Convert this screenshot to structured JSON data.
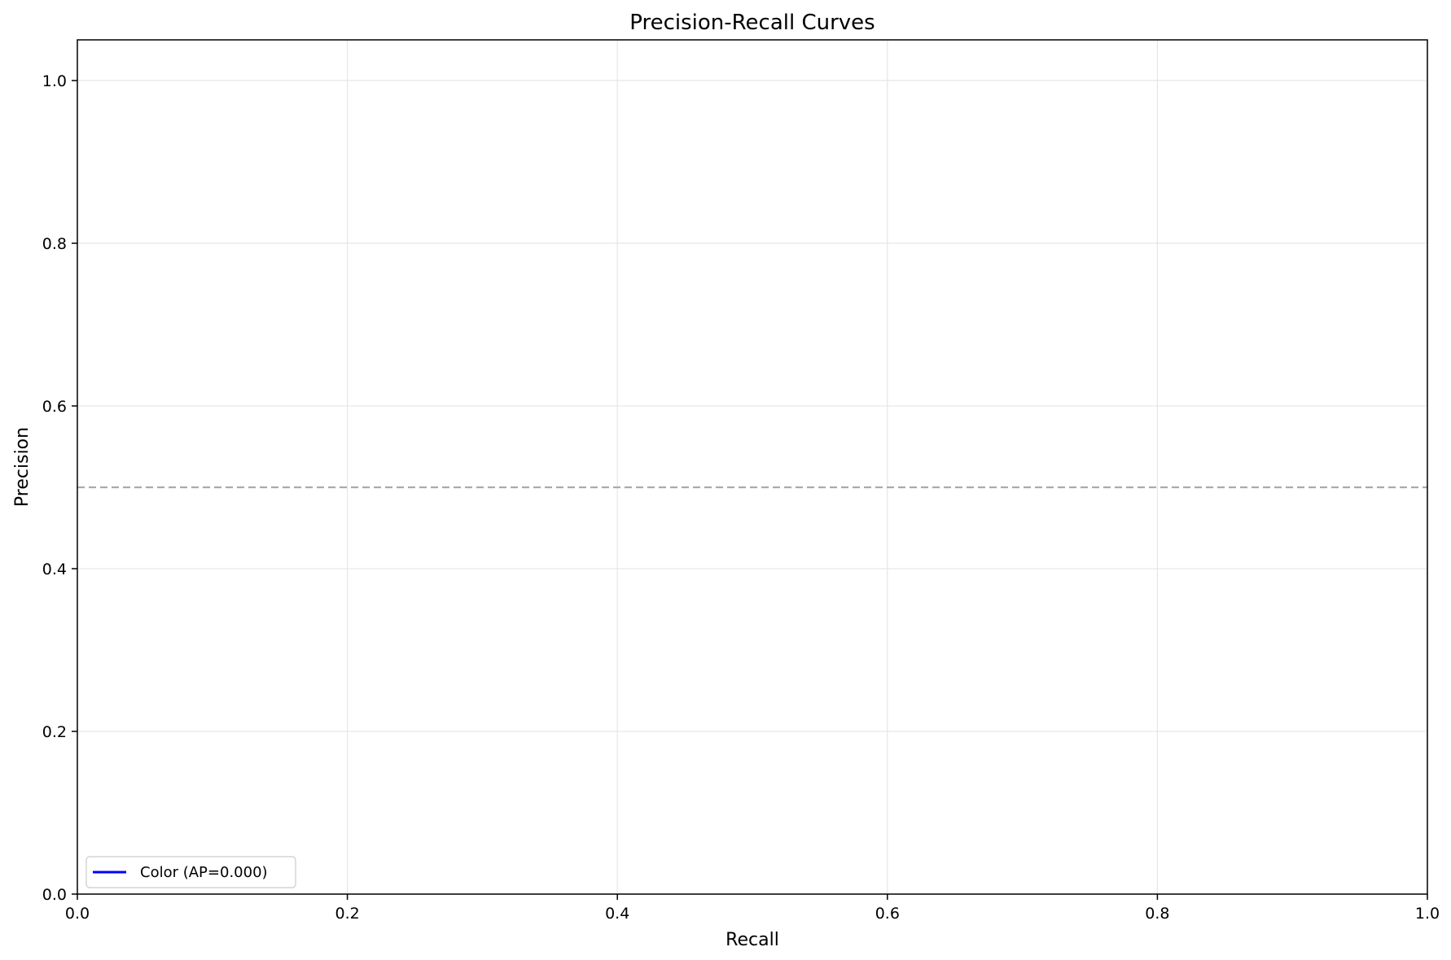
{
  "chart_data": {
    "type": "line",
    "title": "Precision-Recall Curves",
    "xlabel": "Recall",
    "ylabel": "Precision",
    "xlim": [
      0.0,
      1.0
    ],
    "ylim": [
      0.0,
      1.05
    ],
    "x_ticks": [
      0.0,
      0.2,
      0.4,
      0.6,
      0.8,
      1.0
    ],
    "x_tick_labels": [
      "0.0",
      "0.2",
      "0.4",
      "0.6",
      "0.8",
      "1.0"
    ],
    "y_ticks": [
      0.0,
      0.2,
      0.4,
      0.6,
      0.8,
      1.0
    ],
    "y_tick_labels": [
      "0.0",
      "0.2",
      "0.4",
      "0.6",
      "0.8",
      "1.0"
    ],
    "grid": true,
    "legend_position": "bottom-left",
    "series": [
      {
        "name": "Color (AP=0.000)",
        "color": "#0000ff",
        "x": [],
        "y": []
      }
    ],
    "reference_lines": [
      {
        "orientation": "horizontal",
        "y": 0.5,
        "color": "#aaaaaa",
        "style": "dashed"
      }
    ],
    "colors": {
      "grid": "#e6e6e6",
      "axes": "#000000"
    }
  }
}
